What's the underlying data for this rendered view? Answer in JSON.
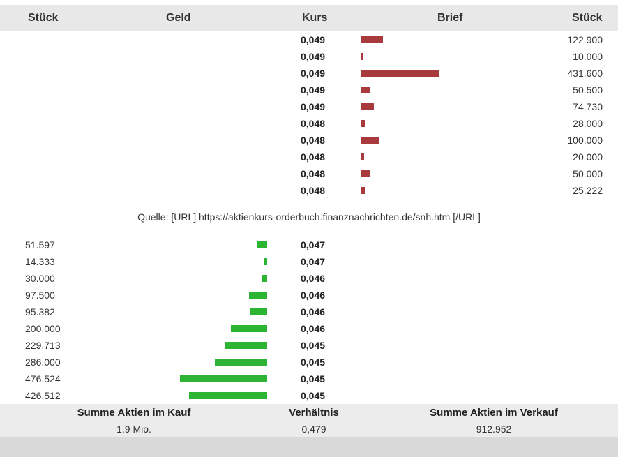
{
  "header": {
    "stueck_left": "Stück",
    "geld": "Geld",
    "kurs": "Kurs",
    "brief": "Brief",
    "stueck_right": "Stück"
  },
  "asks": [
    {
      "price": "0,049",
      "qty": "122.900",
      "amount": 122900
    },
    {
      "price": "0,049",
      "qty": "10.000",
      "amount": 10000
    },
    {
      "price": "0,049",
      "qty": "431.600",
      "amount": 431600
    },
    {
      "price": "0,049",
      "qty": "50.500",
      "amount": 50500
    },
    {
      "price": "0,049",
      "qty": "74.730",
      "amount": 74730
    },
    {
      "price": "0,048",
      "qty": "28.000",
      "amount": 28000
    },
    {
      "price": "0,048",
      "qty": "100.000",
      "amount": 100000
    },
    {
      "price": "0,048",
      "qty": "20.000",
      "amount": 20000
    },
    {
      "price": "0,048",
      "qty": "50.000",
      "amount": 50000
    },
    {
      "price": "0,048",
      "qty": "25.222",
      "amount": 25222
    }
  ],
  "source": "Quelle: [URL] https://aktienkurs-orderbuch.finanznachrichten.de/snh.htm [/URL]",
  "bids": [
    {
      "price": "0,047",
      "qty": "51.597",
      "amount": 51597
    },
    {
      "price": "0,047",
      "qty": "14.333",
      "amount": 14333
    },
    {
      "price": "0,046",
      "qty": "30.000",
      "amount": 30000
    },
    {
      "price": "0,046",
      "qty": "97.500",
      "amount": 97500
    },
    {
      "price": "0,046",
      "qty": "95.382",
      "amount": 95382
    },
    {
      "price": "0,046",
      "qty": "200.000",
      "amount": 200000
    },
    {
      "price": "0,045",
      "qty": "229.713",
      "amount": 229713
    },
    {
      "price": "0,045",
      "qty": "286.000",
      "amount": 286000
    },
    {
      "price": "0,045",
      "qty": "476.524",
      "amount": 476524
    },
    {
      "price": "0,045",
      "qty": "426.512",
      "amount": 426512
    }
  ],
  "summary": {
    "buy_label": "Summe Aktien im Kauf",
    "buy_value": "1,9 Mio.",
    "ratio_label": "Verhältnis",
    "ratio_value": "0,479",
    "sell_label": "Summe Aktien im Verkauf",
    "sell_value": "912.952"
  },
  "colors": {
    "ask_bar": "#a83a3e",
    "bid_bar": "#2db432"
  }
}
